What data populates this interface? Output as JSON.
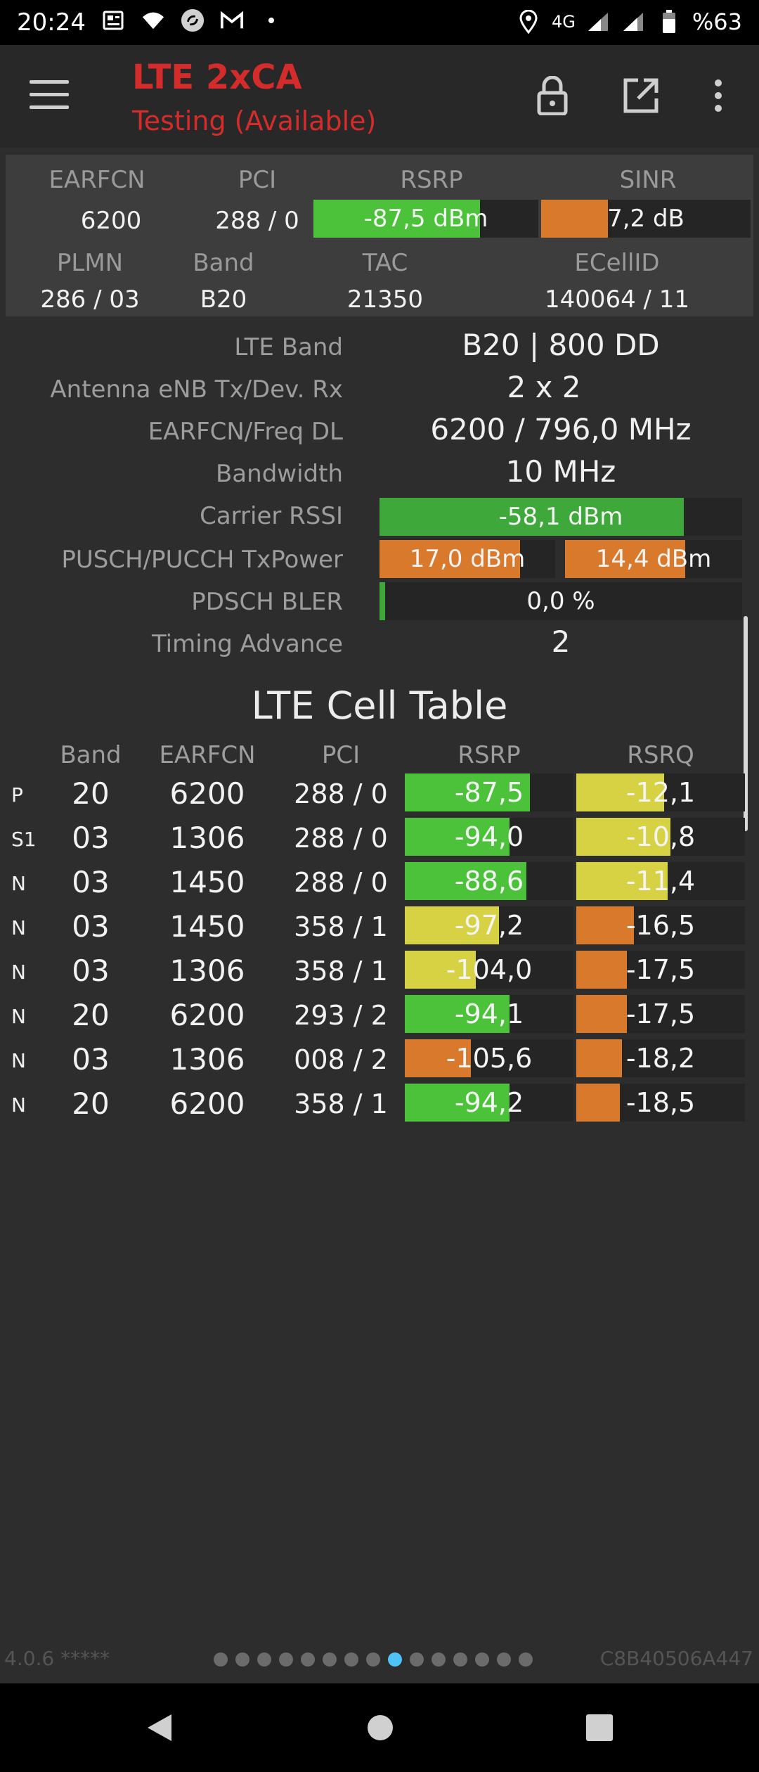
{
  "status_bar": {
    "time": "20:24",
    "network": "4G",
    "battery": "%63",
    "icons": [
      "news-icon",
      "wifi-icon",
      "sync-icon",
      "gmail-icon",
      "dot-icon",
      "location-icon",
      "signal-icon",
      "signal-icon",
      "battery-icon"
    ]
  },
  "toolbar": {
    "title": "LTE 2xCA",
    "subtitle": "Testing (Available)",
    "icons": [
      "menu-icon",
      "lock-icon",
      "open-external-icon",
      "more-vert-icon"
    ]
  },
  "summary": {
    "headers1": [
      "EARFCN",
      "PCI",
      "RSRP",
      "SINR"
    ],
    "earfcn": "6200",
    "pci": "288 / 0",
    "rsrp": {
      "label": "-87,5 dBm",
      "fill": 0.74,
      "color": "#4cc23a"
    },
    "sinr": {
      "label": "7,2 dB",
      "fill": 0.32,
      "color": "#d9792c"
    },
    "headers2": [
      "PLMN",
      "Band",
      "TAC",
      "ECellID"
    ],
    "plmn": "286 / 03",
    "band": "B20",
    "tac": "21350",
    "ecellid": "140064 / 11"
  },
  "details": {
    "lte_band_label": "LTE Band",
    "lte_band": "B20 | 800 DD",
    "antenna_label": "Antenna eNB Tx/Dev. Rx",
    "antenna": "2 x 2",
    "earfcn_freq_label": "EARFCN/Freq DL",
    "earfcn_freq": "6200 / 796,0 MHz",
    "bandwidth_label": "Bandwidth",
    "bandwidth": "10 MHz",
    "rssi_label": "Carrier RSSI",
    "rssi": {
      "label": "-58,1 dBm",
      "fill": 0.84,
      "color": "#3ea83a"
    },
    "txpower_label": "PUSCH/PUCCH TxPower",
    "pusch": {
      "label": "17,0 dBm",
      "fill": 0.8,
      "color": "#d9792c"
    },
    "pucch": {
      "label": "14,4 dBm",
      "fill": 0.68,
      "color": "#d9792c"
    },
    "bler_label": "PDSCH BLER",
    "bler": {
      "label": "0,0 %",
      "fill": 0.015,
      "color": "#3ea83a"
    },
    "ta_label": "Timing Advance",
    "ta": "2"
  },
  "cell_table": {
    "title": "LTE Cell Table",
    "headers": [
      "Band",
      "EARFCN",
      "PCI",
      "RSRP",
      "RSRQ"
    ],
    "rows": [
      {
        "tag": "P",
        "band": "20",
        "earfcn": "6200",
        "pci": "288 / 0",
        "rsrp": "-87,5",
        "rsrp_fill": 0.74,
        "rsrp_color": "#4cc23a",
        "rsrq": "-12,1",
        "rsrq_fill": 0.52,
        "rsrq_color": "#d6d244"
      },
      {
        "tag": "S1",
        "band": "03",
        "earfcn": "1306",
        "pci": "288 / 0",
        "rsrp": "-94,0",
        "rsrp_fill": 0.62,
        "rsrp_color": "#4cc23a",
        "rsrq": "-10,8",
        "rsrq_fill": 0.56,
        "rsrq_color": "#d6d244"
      },
      {
        "tag": "N",
        "band": "03",
        "earfcn": "1450",
        "pci": "288 / 0",
        "rsrp": "-88,6",
        "rsrp_fill": 0.72,
        "rsrp_color": "#4cc23a",
        "rsrq": "-11,4",
        "rsrq_fill": 0.54,
        "rsrq_color": "#d6d244"
      },
      {
        "tag": "N",
        "band": "03",
        "earfcn": "1450",
        "pci": "358 / 1",
        "rsrp": "-97,2",
        "rsrp_fill": 0.56,
        "rsrp_color": "#d6d244",
        "rsrq": "-16,5",
        "rsrq_fill": 0.34,
        "rsrq_color": "#d9792c"
      },
      {
        "tag": "N",
        "band": "03",
        "earfcn": "1306",
        "pci": "358 / 1",
        "rsrp": "-104,0",
        "rsrp_fill": 0.42,
        "rsrp_color": "#d6d244",
        "rsrq": "-17,5",
        "rsrq_fill": 0.3,
        "rsrq_color": "#d9792c"
      },
      {
        "tag": "N",
        "band": "20",
        "earfcn": "6200",
        "pci": "293 / 2",
        "rsrp": "-94,1",
        "rsrp_fill": 0.62,
        "rsrp_color": "#4cc23a",
        "rsrq": "-17,5",
        "rsrq_fill": 0.3,
        "rsrq_color": "#d9792c"
      },
      {
        "tag": "N",
        "band": "03",
        "earfcn": "1306",
        "pci": "008 / 2",
        "rsrp": "-105,6",
        "rsrp_fill": 0.39,
        "rsrp_color": "#d9792c",
        "rsrq": "-18,2",
        "rsrq_fill": 0.27,
        "rsrq_color": "#d9792c"
      },
      {
        "tag": "N",
        "band": "20",
        "earfcn": "6200",
        "pci": "358 / 1",
        "rsrp": "-94,2",
        "rsrp_fill": 0.62,
        "rsrp_color": "#4cc23a",
        "rsrq": "-18,5",
        "rsrq_fill": 0.26,
        "rsrq_color": "#d9792c"
      }
    ]
  },
  "footer": {
    "version": "4.0.6 *****",
    "device_id": "C8B40506A447",
    "pages": 15,
    "active_page": 8
  }
}
